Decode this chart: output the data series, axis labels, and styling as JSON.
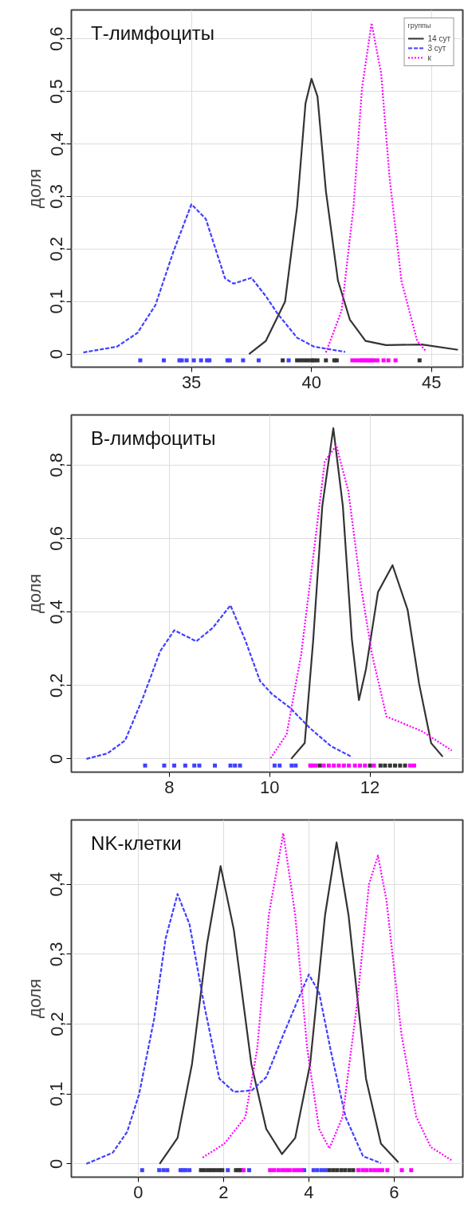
{
  "chart_data": [
    {
      "type": "line",
      "title": "Т-лимфоциты",
      "ylabel": "доля",
      "legend_title": "группы",
      "legend": "top right",
      "grid": true,
      "xlim": [
        30.0,
        46.3
      ],
      "ylim": [
        -0.025,
        0.655
      ],
      "xticks": [
        35,
        40,
        45
      ],
      "yticks": [
        0,
        {
          "value": 0.1,
          "label": "0,1"
        },
        {
          "value": 0.2,
          "label": "0,2"
        },
        {
          "value": 0.3,
          "label": "0,3"
        },
        {
          "value": 0.4,
          "label": "0,4"
        },
        {
          "value": 0.5,
          "label": "0,5"
        },
        {
          "value": 0.6,
          "label": "0,6"
        }
      ],
      "series": [
        {
          "name": "14 сут",
          "color": "#333333",
          "line_style": "solid",
          "x": [
            37.4,
            38.1,
            38.9,
            39.4,
            39.75,
            40.0,
            40.25,
            40.6,
            41.1,
            41.6,
            42.25,
            43.1,
            44.6,
            46.1
          ],
          "values": [
            0.0,
            0.025,
            0.1,
            0.28,
            0.477,
            0.524,
            0.49,
            0.31,
            0.14,
            0.065,
            0.025,
            0.017,
            0.018,
            0.008
          ]
        },
        {
          "name": "3 сут",
          "color": "#4040ff",
          "line_style": "dashed",
          "x": [
            30.5,
            31.9,
            32.75,
            33.5,
            34.25,
            35.0,
            35.6,
            36.4,
            36.75,
            37.5,
            38.1,
            38.6,
            39.4,
            40.1,
            41.4
          ],
          "values": [
            0.003,
            0.014,
            0.04,
            0.093,
            0.195,
            0.285,
            0.257,
            0.144,
            0.134,
            0.145,
            0.11,
            0.076,
            0.031,
            0.014,
            0.004
          ]
        },
        {
          "name": "к",
          "color": "#ff00ff",
          "line_style": "dotted",
          "x": [
            40.6,
            41.25,
            41.75,
            42.1,
            42.5,
            42.9,
            43.25,
            43.75,
            44.4,
            44.75
          ],
          "values": [
            0.003,
            0.082,
            0.28,
            0.505,
            0.63,
            0.534,
            0.336,
            0.138,
            0.025,
            0.006
          ]
        },
        {
          "type": "scatter",
          "marker": "square",
          "color": "#4040ff",
          "x": [
            32.87,
            33.85,
            34.5,
            34.6,
            34.8,
            35.1,
            35.4,
            35.65,
            35.75,
            36.5,
            36.6,
            37.15,
            37.8,
            39.05
          ],
          "values": [
            -0.012,
            -0.012,
            -0.012,
            -0.012,
            -0.012,
            -0.012,
            -0.012,
            -0.012,
            -0.012,
            -0.012,
            -0.012,
            -0.012,
            -0.012,
            -0.012
          ]
        },
        {
          "type": "scatter",
          "marker": "square",
          "color": "#333333",
          "x": [
            38.8,
            39.4,
            39.55,
            39.7,
            39.85,
            40.0,
            40.1,
            40.25,
            40.6,
            40.95,
            41.05,
            44.5
          ],
          "values": [
            -0.012,
            -0.012,
            -0.012,
            -0.012,
            -0.012,
            -0.012,
            -0.012,
            -0.012,
            -0.012,
            -0.012,
            -0.012,
            -0.012
          ]
        },
        {
          "type": "scatter",
          "marker": "square",
          "color": "#ff00ff",
          "x": [
            41.7,
            41.85,
            42.0,
            42.1,
            42.2,
            42.3,
            42.4,
            42.5,
            42.6,
            42.75,
            43.0,
            43.2,
            43.5
          ],
          "values": [
            -0.012,
            -0.012,
            -0.012,
            -0.012,
            -0.012,
            -0.012,
            -0.012,
            -0.012,
            -0.012,
            -0.012,
            -0.012,
            -0.012,
            -0.012
          ]
        }
      ]
    },
    {
      "type": "line",
      "title": "В-лимфоциты",
      "ylabel": "доля",
      "grid": true,
      "xlim": [
        6.05,
        13.85
      ],
      "ylim": [
        -0.036,
        0.936
      ],
      "xticks": [
        8,
        10,
        12
      ],
      "yticks": [
        0,
        {
          "value": 0.2,
          "label": "0,2"
        },
        {
          "value": 0.4,
          "label": "0,4"
        },
        {
          "value": 0.6,
          "label": "0,6"
        },
        {
          "value": 0.8,
          "label": "0,8"
        }
      ],
      "series": [
        {
          "color": "#333333",
          "line_style": "solid",
          "x": [
            10.43,
            10.7,
            10.87,
            11.05,
            11.27,
            11.46,
            11.64,
            11.78,
            11.92,
            12.16,
            12.45,
            12.75,
            12.98,
            13.22,
            13.45
          ],
          "values": [
            0.0,
            0.043,
            0.325,
            0.688,
            0.9,
            0.688,
            0.325,
            0.16,
            0.244,
            0.454,
            0.527,
            0.406,
            0.204,
            0.043,
            0.006
          ]
        },
        {
          "color": "#4040ff",
          "line_style": "dashed",
          "x": [
            6.35,
            6.77,
            7.12,
            7.47,
            7.82,
            8.1,
            8.54,
            8.87,
            9.22,
            9.51,
            9.81,
            10.05,
            10.4,
            10.81,
            11.22,
            11.63
          ],
          "values": [
            0.0,
            0.015,
            0.05,
            0.164,
            0.293,
            0.35,
            0.32,
            0.357,
            0.418,
            0.325,
            0.212,
            0.176,
            0.14,
            0.083,
            0.035,
            0.006
          ]
        },
        {
          "color": "#ff00ff",
          "line_style": "dotted",
          "x": [
            10.02,
            10.34,
            10.63,
            10.92,
            11.1,
            11.33,
            11.57,
            11.8,
            12.04,
            12.33,
            12.69,
            13.04,
            13.63
          ],
          "values": [
            0.002,
            0.067,
            0.285,
            0.607,
            0.81,
            0.853,
            0.728,
            0.486,
            0.285,
            0.115,
            0.095,
            0.075,
            0.023
          ]
        },
        {
          "type": "scatter",
          "marker": "square",
          "color": "#4040ff",
          "x": [
            7.52,
            7.9,
            8.1,
            8.32,
            8.5,
            8.6,
            8.91,
            9.22,
            9.31,
            9.41,
            10.1,
            10.2,
            10.44,
            10.52
          ],
          "values": [
            -0.018,
            -0.018,
            -0.018,
            -0.018,
            -0.018,
            -0.018,
            -0.018,
            -0.018,
            -0.018,
            -0.018,
            -0.018,
            -0.018,
            -0.018,
            -0.018
          ]
        },
        {
          "type": "scatter",
          "marker": "square",
          "color": "#ff00ff",
          "x": [
            10.81,
            10.86,
            10.92,
            11.08,
            11.18,
            11.28,
            11.38,
            11.48,
            11.58,
            11.7,
            11.8,
            11.9,
            12.08,
            12.8,
            12.88
          ],
          "values": [
            -0.018,
            -0.018,
            -0.018,
            -0.018,
            -0.018,
            -0.018,
            -0.018,
            -0.018,
            -0.018,
            -0.018,
            -0.018,
            -0.018,
            -0.018,
            -0.018,
            -0.018
          ]
        },
        {
          "type": "scatter",
          "marker": "square",
          "color": "#333333",
          "x": [
            11.0,
            12.0,
            12.21,
            12.3,
            12.4,
            12.5,
            12.6,
            12.7
          ],
          "values": [
            -0.018,
            -0.018,
            -0.018,
            -0.018,
            -0.018,
            -0.018,
            -0.018,
            -0.018
          ]
        }
      ]
    },
    {
      "type": "line",
      "title": "NK-клетки",
      "ylabel": "доля",
      "grid": true,
      "xlim": [
        -1.57,
        7.61
      ],
      "ylim": [
        -0.019,
        0.492
      ],
      "xticks": [
        0,
        2,
        4,
        6
      ],
      "yticks": [
        0,
        {
          "value": 0.1,
          "label": "0,1"
        },
        {
          "value": 0.2,
          "label": "0,2"
        },
        {
          "value": 0.3,
          "label": "0,3"
        },
        {
          "value": 0.4,
          "label": "0,4"
        }
      ],
      "series": [
        {
          "color": "#333333",
          "line_style": "solid",
          "x": [
            0.5,
            0.92,
            1.26,
            1.61,
            1.93,
            2.24,
            2.65,
            3.0,
            3.37,
            3.68,
            4.03,
            4.38,
            4.65,
            4.93,
            5.34,
            5.69,
            6.1
          ],
          "values": [
            0.0,
            0.037,
            0.143,
            0.314,
            0.426,
            0.335,
            0.143,
            0.05,
            0.014,
            0.037,
            0.143,
            0.356,
            0.46,
            0.356,
            0.122,
            0.029,
            0.002
          ]
        },
        {
          "color": "#4040ff",
          "line_style": "dashed",
          "x": [
            -1.22,
            -0.6,
            -0.26,
            0.02,
            0.37,
            0.64,
            0.92,
            1.2,
            1.54,
            1.9,
            2.24,
            2.66,
            3.0,
            3.41,
            3.76,
            4.0,
            4.24,
            4.52,
            4.86,
            5.27,
            5.69
          ],
          "values": [
            0.0,
            0.016,
            0.046,
            0.1,
            0.207,
            0.322,
            0.386,
            0.343,
            0.229,
            0.122,
            0.103,
            0.105,
            0.124,
            0.186,
            0.237,
            0.271,
            0.245,
            0.16,
            0.067,
            0.011,
            0.001
          ]
        },
        {
          "color": "#ff00ff",
          "line_style": "dotted",
          "x": [
            1.51,
            2.02,
            2.51,
            2.79,
            3.06,
            3.4,
            3.68,
            3.96,
            4.24,
            4.48,
            4.79,
            5.13,
            5.41,
            5.62,
            5.82,
            6.17,
            6.52,
            6.86,
            7.35
          ],
          "values": [
            0.009,
            0.029,
            0.067,
            0.165,
            0.356,
            0.473,
            0.356,
            0.165,
            0.05,
            0.022,
            0.067,
            0.229,
            0.4,
            0.441,
            0.377,
            0.186,
            0.067,
            0.024,
            0.005
          ]
        },
        {
          "type": "scatter",
          "marker": "square",
          "color": "#4040ff",
          "x": [
            0.09,
            0.49,
            0.59,
            0.68,
            0.99,
            1.05,
            1.11,
            1.2,
            2.1,
            2.6,
            3.89,
            4.11,
            4.2,
            4.3,
            4.39
          ],
          "values": [
            -0.009,
            -0.009,
            -0.009,
            -0.009,
            -0.009,
            -0.009,
            -0.009,
            -0.009,
            -0.009,
            -0.009,
            -0.009,
            -0.009,
            -0.009,
            -0.009,
            -0.009
          ]
        },
        {
          "type": "scatter",
          "marker": "square",
          "color": "#333333",
          "x": [
            1.47,
            1.55,
            1.64,
            1.72,
            1.8,
            1.89,
            1.97,
            2.29,
            2.35,
            2.41,
            4.48,
            4.57,
            4.66,
            4.76,
            4.85,
            4.95,
            5.04
          ],
          "values": [
            -0.009,
            -0.009,
            -0.009,
            -0.009,
            -0.009,
            -0.009,
            -0.009,
            -0.009,
            -0.009,
            -0.009,
            -0.009,
            -0.009,
            -0.009,
            -0.009,
            -0.009,
            -0.009,
            -0.009
          ]
        },
        {
          "type": "scatter",
          "marker": "square",
          "color": "#ff00ff",
          "x": [
            2.47,
            3.09,
            3.18,
            3.28,
            3.37,
            3.46,
            3.55,
            3.65,
            3.74,
            3.83,
            5.16,
            5.26,
            5.35,
            5.45,
            5.54,
            5.63,
            5.72,
            5.84,
            6.18,
            6.4
          ],
          "values": [
            -0.009,
            -0.009,
            -0.009,
            -0.009,
            -0.009,
            -0.009,
            -0.009,
            -0.009,
            -0.009,
            -0.009,
            -0.009,
            -0.009,
            -0.009,
            -0.009,
            -0.009,
            -0.009,
            -0.009,
            -0.009,
            -0.009,
            -0.009
          ]
        }
      ]
    }
  ]
}
